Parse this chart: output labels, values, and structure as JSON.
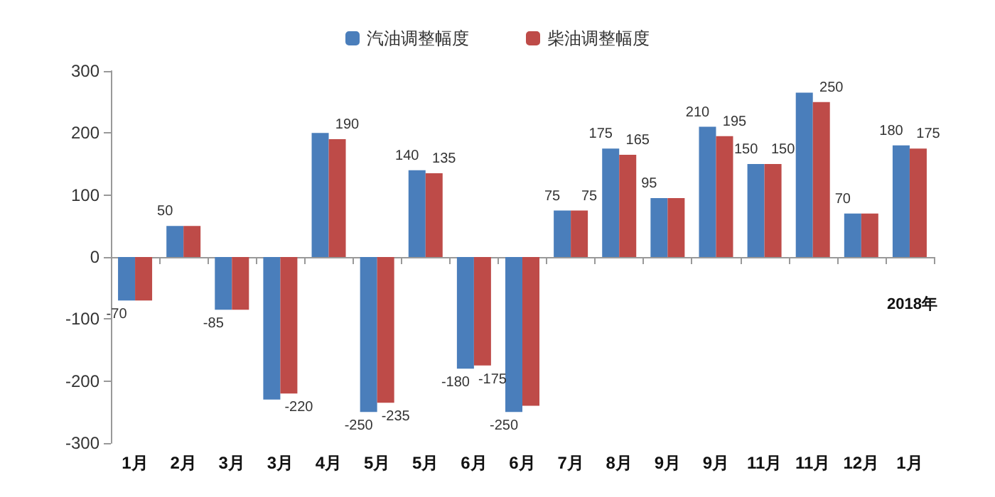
{
  "chart_data": {
    "type": "bar",
    "categories": [
      "1月",
      "2月",
      "3月",
      "3月",
      "4月",
      "5月",
      "5月",
      "6月",
      "6月",
      "7月",
      "8月",
      "9月",
      "9月",
      "11月",
      "11月",
      "12月",
      "1月"
    ],
    "series": [
      {
        "name": "汽油调整幅度",
        "color": "#4a7ebb",
        "values": [
          -70,
          50,
          -85,
          -230,
          200,
          -250,
          140,
          -180,
          -250,
          75,
          175,
          95,
          210,
          150,
          265,
          70,
          180
        ],
        "value_labels": [
          "-70",
          "50",
          "-85",
          null,
          null,
          "-250",
          "140",
          "-180",
          "-250",
          "75",
          "175",
          "95",
          "210",
          "150",
          null,
          "70",
          "180"
        ]
      },
      {
        "name": "柴油调整幅度",
        "color": "#be4b48",
        "values": [
          -70,
          50,
          -85,
          -220,
          190,
          -235,
          135,
          -175,
          -240,
          75,
          165,
          95,
          195,
          150,
          250,
          70,
          175
        ],
        "value_labels": [
          null,
          null,
          null,
          "-220",
          "190",
          "-235",
          "135",
          "-175",
          null,
          "75",
          "165",
          null,
          "195",
          "150",
          "250",
          null,
          "175"
        ]
      }
    ],
    "ylim": [
      -300,
      300
    ],
    "yticks": [
      -300,
      -200,
      -100,
      0,
      100,
      200,
      300
    ],
    "legend": "top",
    "annotations": [
      "2018年"
    ]
  }
}
